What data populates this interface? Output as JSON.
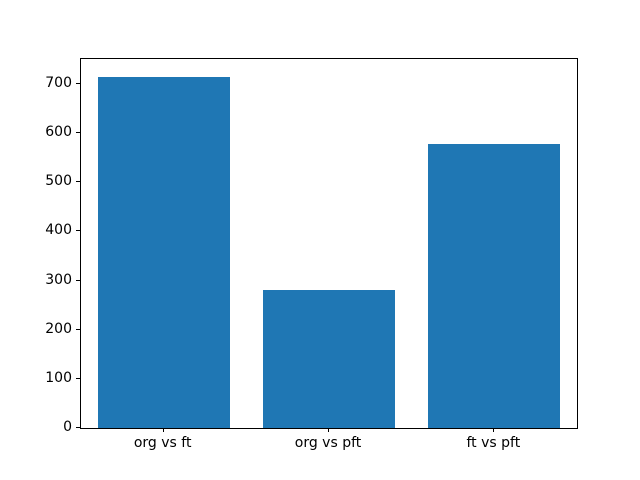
{
  "figure": {
    "background_color": "#ffffff",
    "spine_color": "#000000",
    "tick_color": "#000000"
  },
  "chart_data": {
    "type": "bar",
    "title": "",
    "xlabel": "",
    "ylabel": "",
    "categories": [
      "org vs ft",
      "org vs pft",
      "ft vs pft"
    ],
    "values": [
      715,
      280,
      578
    ],
    "bar_color": "#1f77b4",
    "bar_width_fraction": 0.8,
    "ylim": [
      0,
      751
    ],
    "yticks": [
      0,
      100,
      200,
      300,
      400,
      500,
      600,
      700
    ],
    "grid": false,
    "legend": null
  }
}
